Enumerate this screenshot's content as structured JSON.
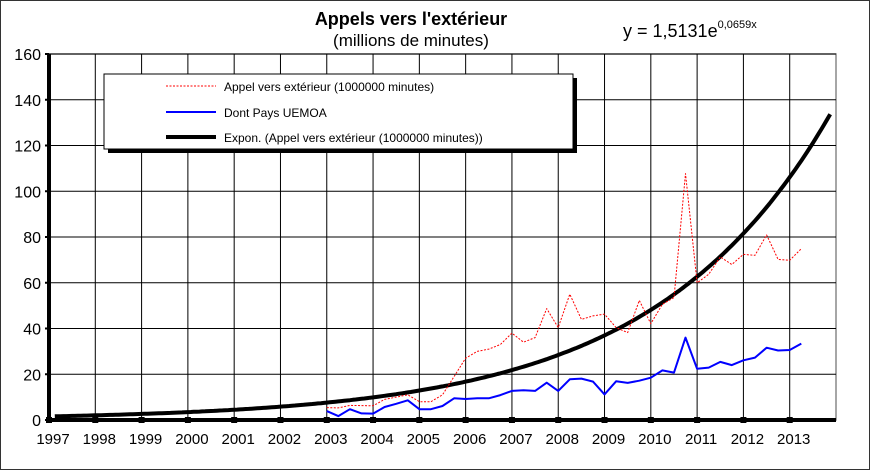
{
  "chart_data": {
    "type": "line",
    "title": "Appels vers l'extérieur",
    "subtitle": "(millions de minutes)",
    "equation": {
      "prefix": "y = 1,5131e",
      "exponent": "0,0659x",
      "a": 1.5131,
      "b": 0.0659
    },
    "xlabel": "",
    "ylabel": "",
    "xlim": [
      1997,
      2014
    ],
    "ylim": [
      0,
      160
    ],
    "y_ticks": [
      "0",
      "20",
      "40",
      "60",
      "80",
      "100",
      "120",
      "140",
      "160"
    ],
    "x_ticks": [
      "1997",
      "1998",
      "1999",
      "2000",
      "2001",
      "2002",
      "2003",
      "2004",
      "2005",
      "2006",
      "2007",
      "2008",
      "2009",
      "2010",
      "2011",
      "2012",
      "2013"
    ],
    "grid": true,
    "legend_position": "top-left",
    "x_start": 2003.0,
    "x_step": 0.25,
    "series": [
      {
        "name": "Appel vers extérieur (1000000 minutes)",
        "color": "#ff0000",
        "style": "dotted",
        "values": [
          5.4,
          5.3,
          6.4,
          6.3,
          6.2,
          9,
          10,
          11,
          8,
          8,
          11,
          19,
          27,
          30,
          31,
          33,
          38,
          34,
          36,
          48.7,
          40.4,
          55,
          44,
          45.5,
          46.3,
          40.4,
          38.2,
          52.3,
          42.1,
          50.6,
          53.5,
          107.7,
          60,
          63.7,
          71.3,
          68,
          72.4,
          72,
          80.9,
          70.2,
          69.8,
          74.9
        ]
      },
      {
        "name": "Dont Pays UEMOA",
        "color": "#0000ff",
        "style": "solid",
        "values": [
          3.9,
          1.7,
          4.7,
          2.9,
          2.8,
          5.7,
          7.1,
          8.6,
          4.7,
          4.7,
          6.1,
          9.5,
          9.2,
          9.5,
          9.5,
          10.9,
          12.7,
          13,
          12.7,
          16.3,
          12.7,
          17.8,
          18.1,
          16.8,
          11.2,
          16.9,
          16.2,
          17.2,
          18.5,
          21.7,
          20.7,
          36,
          22.4,
          22.9,
          25.4,
          24,
          26.1,
          27.3,
          31.6,
          30.4,
          30.6,
          33.4
        ]
      },
      {
        "name": "Expon. (Appel vers extérieur (1000000 minutes))",
        "color": "#000000",
        "style": "thick",
        "trend_points": 68
      }
    ]
  }
}
